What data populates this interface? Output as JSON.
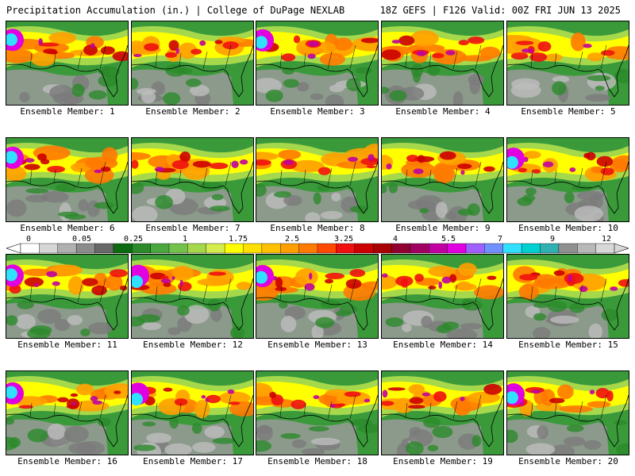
{
  "header": {
    "left": "Precipitation Accumulation (in.) | College of DuPage NEXLAB",
    "right": "18Z GEFS | F126 Valid: 00Z FRI JUN 13 2025"
  },
  "colorbar": {
    "labels": [
      "0",
      "0.05",
      "0.25",
      "1",
      "1.75",
      "2.5",
      "3.25",
      "4",
      "5.5",
      "7",
      "9",
      "12"
    ],
    "colors": [
      "#ffffff",
      "#d6d6d6",
      "#b0b0b0",
      "#8c8c8c",
      "#686868",
      "#0c6b10",
      "#2c8a2a",
      "#4aa83e",
      "#74c24c",
      "#a6d84c",
      "#d4ec4c",
      "#ffff00",
      "#ffe000",
      "#ffc000",
      "#ffa000",
      "#ff7a00",
      "#ff4a00",
      "#f01010",
      "#cc0000",
      "#a80000",
      "#900030",
      "#a00060",
      "#c000a0",
      "#e000e0",
      "#a060ff",
      "#7090ff",
      "#30e0ff",
      "#00d0d0",
      "#30b0b0",
      "#909090",
      "#b8b8b8",
      "#d8d8d8"
    ]
  },
  "panels": [
    {
      "label": "Ensemble Member: 1"
    },
    {
      "label": "Ensemble Member: 2"
    },
    {
      "label": "Ensemble Member: 3"
    },
    {
      "label": "Ensemble Member: 4"
    },
    {
      "label": "Ensemble Member: 5"
    },
    {
      "label": "Ensemble Member: 6"
    },
    {
      "label": "Ensemble Member: 7"
    },
    {
      "label": "Ensemble Member: 8"
    },
    {
      "label": "Ensemble Member: 9"
    },
    {
      "label": "Ensemble Member: 10"
    },
    {
      "label": "Ensemble Member: 11"
    },
    {
      "label": "Ensemble Member: 12"
    },
    {
      "label": "Ensemble Member: 13"
    },
    {
      "label": "Ensemble Member: 14"
    },
    {
      "label": "Ensemble Member: 15"
    },
    {
      "label": "Ensemble Member: 16"
    },
    {
      "label": "Ensemble Member: 17"
    },
    {
      "label": "Ensemble Member: 18"
    },
    {
      "label": "Ensemble Member: 19"
    },
    {
      "label": "Ensemble Member: 20"
    }
  ]
}
